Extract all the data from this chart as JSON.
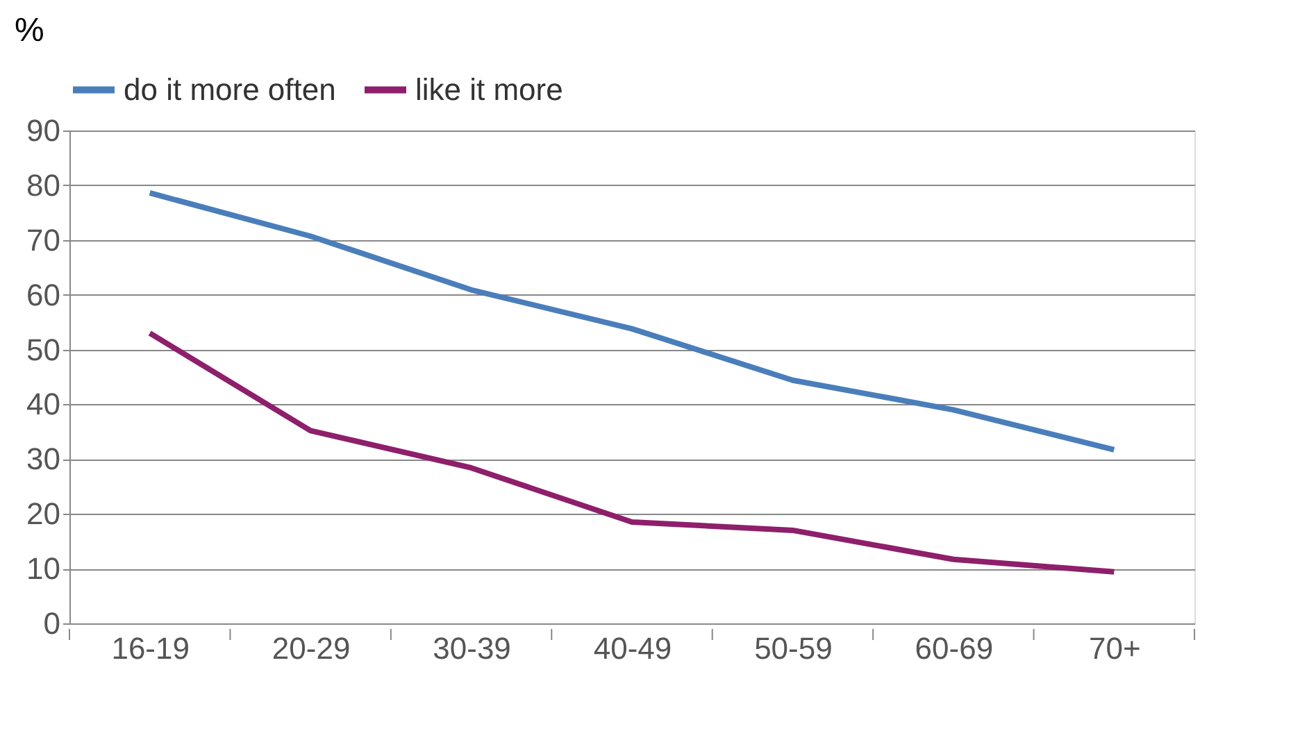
{
  "chart_data": {
    "type": "line",
    "ylabel": "%",
    "categories": [
      "16-19",
      "20-29",
      "30-39",
      "40-49",
      "50-59",
      "60-69",
      "70+"
    ],
    "series": [
      {
        "name": "do it more often",
        "color": "#4a7ebb",
        "values": [
          78.6,
          70.7,
          60.9,
          53.8,
          44.4,
          39.0,
          31.7
        ]
      },
      {
        "name": "like it more",
        "color": "#8e1f6b",
        "values": [
          53.0,
          35.2,
          28.4,
          18.5,
          17.0,
          11.7,
          9.4
        ]
      }
    ],
    "ylim": [
      0,
      90
    ],
    "yticks": [
      0,
      10,
      20,
      30,
      40,
      50,
      60,
      70,
      80,
      90
    ],
    "grid": "y",
    "legend": "top",
    "marker": "none",
    "line_style": "solid"
  }
}
